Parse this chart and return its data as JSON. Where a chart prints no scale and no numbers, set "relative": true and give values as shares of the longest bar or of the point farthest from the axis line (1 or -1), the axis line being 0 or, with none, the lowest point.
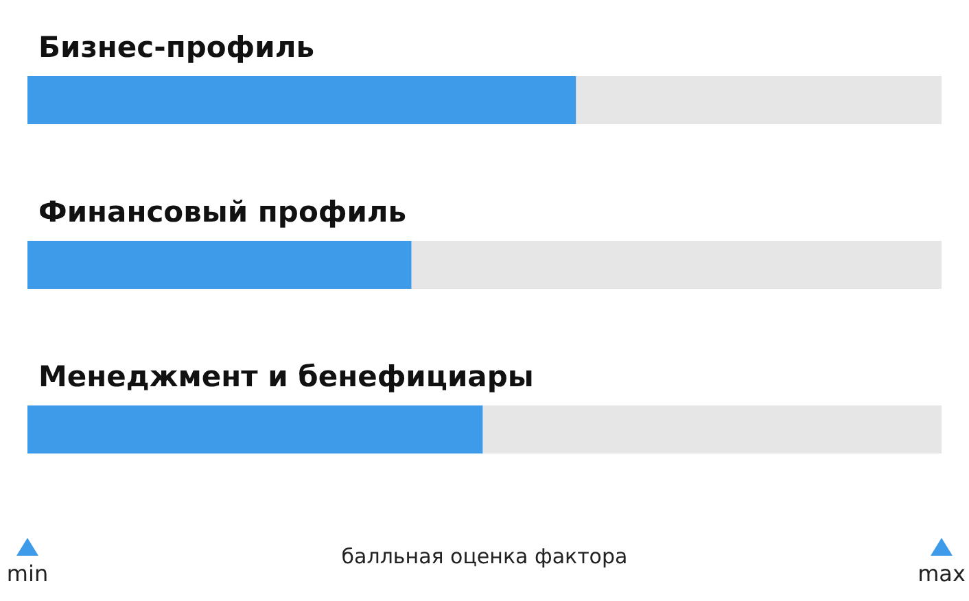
{
  "chart_data": {
    "type": "bar",
    "orientation": "horizontal",
    "relative": true,
    "xlabel": "балльная оценка фактора",
    "categories": [
      "Бизнес-профиль",
      "Финансовый профиль",
      "Менеджмент и бенефициары"
    ],
    "values": [
      1,
      0.7,
      0.83
    ],
    "color": "#3d9be9",
    "annotations": [
      "min",
      "max"
    ]
  }
}
